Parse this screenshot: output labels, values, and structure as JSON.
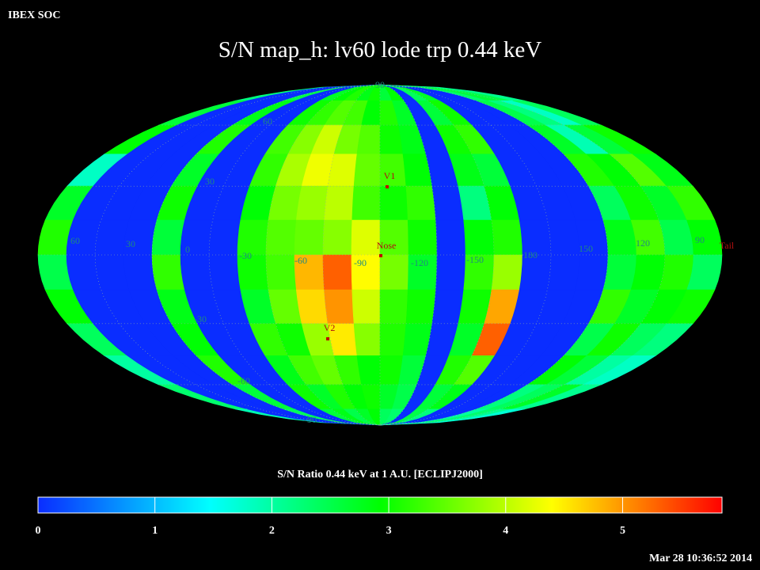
{
  "header": "IBEX SOC",
  "timestamp": "Mar 28 10:36:52 2014",
  "chart_data": {
    "type": "heatmap",
    "projection": "mollweide",
    "title": "S/N  map_h: lv60 lode trp 0.44 keV",
    "colorbar_label": "S/N Ratio 0.44 keV at 1 A.U. [ECLIPJ2000]",
    "colorbar_lim": [
      0,
      5.85
    ],
    "colorbar_ticks": [
      0,
      1,
      2,
      3,
      4,
      5
    ],
    "colormap": [
      "#0a2dff",
      "#00ffff",
      "#00ff00",
      "#ffff00",
      "#ff0000"
    ],
    "longitude_labels": [
      60,
      30,
      0,
      -30,
      -60,
      -90,
      -120,
      -150,
      180,
      150,
      120,
      90
    ],
    "latitude_labels": [
      90,
      60,
      30,
      -30,
      -60,
      -90
    ],
    "markers": [
      "V1",
      "Nose",
      "V2",
      "Tail"
    ],
    "values": [
      [
        2.2,
        0,
        0,
        0,
        2.5,
        0,
        0,
        2.7,
        2.9,
        3.1,
        2.8,
        3.0,
        2.6,
        2.9,
        0,
        2.4,
        2.7,
        0,
        0,
        0,
        2.3,
        2.6,
        2.5,
        2.1
      ],
      [
        2.6,
        0,
        0,
        0,
        2.8,
        0,
        0,
        3.0,
        3.2,
        3.4,
        3.3,
        2.9,
        3.1,
        2.7,
        0,
        2.6,
        3.0,
        0,
        0,
        0,
        2.5,
        2.2,
        1.8,
        2.4
      ],
      [
        2.9,
        0,
        0,
        0,
        3.1,
        0,
        0,
        3.3,
        3.7,
        4.1,
        3.6,
        3.4,
        3.0,
        2.8,
        0,
        3.0,
        3.2,
        0,
        0,
        0,
        2.7,
        1.9,
        2.6,
        3.0
      ],
      [
        1.8,
        0,
        0,
        0,
        2.7,
        0,
        0,
        3.2,
        3.9,
        4.3,
        4.2,
        3.5,
        3.3,
        2.9,
        0,
        2.8,
        2.6,
        0,
        0,
        0,
        3.1,
        2.9,
        3.4,
        2.8
      ],
      [
        2.7,
        0,
        0,
        0,
        3.0,
        0,
        0,
        2.9,
        3.6,
        3.8,
        4.0,
        3.3,
        3.0,
        3.2,
        0,
        2.2,
        2.9,
        0,
        0,
        0,
        2.4,
        3.0,
        2.7,
        3.2
      ],
      [
        3.1,
        0,
        0,
        0,
        2.6,
        0,
        0,
        3.1,
        3.4,
        3.5,
        3.7,
        4.2,
        3.4,
        3.0,
        0,
        2.9,
        3.1,
        0,
        0,
        0,
        2.8,
        3.3,
        2.5,
        2.9
      ],
      [
        2.5,
        0,
        0,
        0,
        3.2,
        0,
        0,
        3.0,
        3.3,
        4.8,
        5.3,
        4.4,
        3.6,
        2.7,
        0,
        3.2,
        3.8,
        0,
        0,
        0,
        2.6,
        2.9,
        3.1,
        2.4
      ],
      [
        2.9,
        0,
        0,
        0,
        2.8,
        0,
        0,
        2.7,
        3.5,
        4.6,
        5.0,
        4.1,
        3.2,
        3.0,
        0,
        3.0,
        4.9,
        0,
        0,
        0,
        3.2,
        2.7,
        2.9,
        3.0
      ],
      [
        2.4,
        0,
        0,
        0,
        2.9,
        0,
        0,
        3.2,
        3.0,
        3.8,
        4.5,
        3.7,
        3.1,
        2.8,
        0,
        2.7,
        5.3,
        0,
        0,
        0,
        2.5,
        3.0,
        2.4,
        2.2
      ],
      [
        2.0,
        0,
        0,
        0,
        3.1,
        0,
        0,
        2.8,
        3.3,
        3.5,
        3.2,
        2.9,
        3.0,
        2.6,
        0,
        3.1,
        3.4,
        0,
        0,
        0,
        2.9,
        2.6,
        2.0,
        1.8
      ],
      [
        2.3,
        0,
        0,
        0,
        2.6,
        0,
        0,
        3.0,
        2.7,
        3.1,
        2.9,
        3.0,
        2.7,
        2.5,
        0,
        2.6,
        2.8,
        0,
        0,
        0,
        2.2,
        2.4,
        2.7,
        2.1
      ],
      [
        1.9,
        0,
        0,
        0,
        2.4,
        0,
        0,
        2.6,
        2.8,
        2.5,
        2.7,
        2.9,
        2.4,
        2.3,
        0,
        2.5,
        2.2,
        0,
        0,
        0,
        2.0,
        2.3,
        2.1,
        1.7
      ]
    ]
  }
}
